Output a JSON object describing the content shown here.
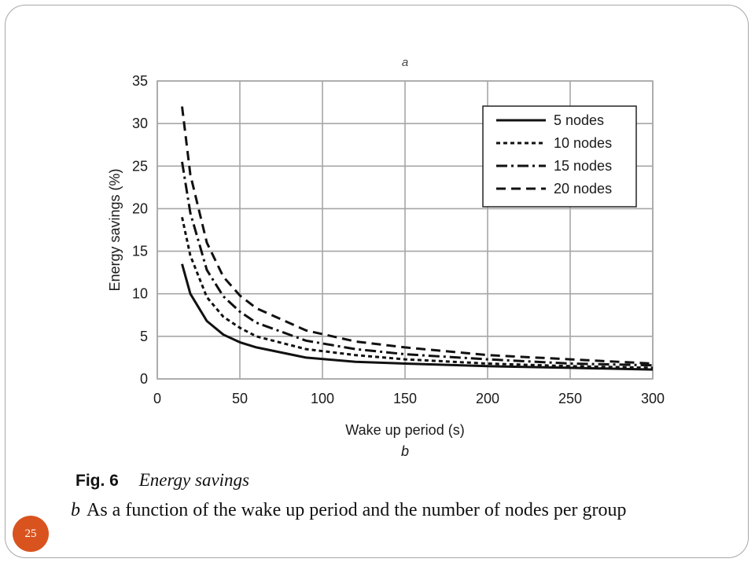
{
  "chart_data": {
    "type": "line",
    "top_label": "a",
    "panel_label": "b",
    "xlabel": "Wake up period (s)",
    "ylabel": "Energy savings (%)",
    "xlim": [
      0,
      300
    ],
    "ylim": [
      0,
      35
    ],
    "x_ticks": [
      0,
      50,
      100,
      150,
      200,
      250,
      300
    ],
    "y_ticks": [
      0,
      5,
      10,
      15,
      20,
      25,
      30,
      35
    ],
    "grid": true,
    "legend_position": "top-right",
    "series": [
      {
        "name": "5 nodes",
        "dash": "solid",
        "x": [
          15,
          20,
          30,
          40,
          50,
          60,
          90,
          120,
          150,
          200,
          250,
          300
        ],
        "y": [
          13.5,
          10,
          6.8,
          5.2,
          4.3,
          3.7,
          2.5,
          2.0,
          1.8,
          1.5,
          1.3,
          1.1
        ]
      },
      {
        "name": "10 nodes",
        "dash": "short-dash",
        "x": [
          15,
          20,
          30,
          40,
          50,
          60,
          90,
          120,
          150,
          200,
          250,
          300
        ],
        "y": [
          19,
          14.5,
          9.6,
          7.3,
          6.0,
          5.0,
          3.5,
          2.8,
          2.3,
          1.8,
          1.5,
          1.3
        ]
      },
      {
        "name": "15 nodes",
        "dash": "dash-dot",
        "x": [
          15,
          20,
          30,
          40,
          50,
          60,
          90,
          120,
          150,
          200,
          250,
          300
        ],
        "y": [
          25.5,
          19.5,
          12.8,
          9.7,
          7.9,
          6.6,
          4.5,
          3.5,
          2.9,
          2.3,
          1.8,
          1.6
        ]
      },
      {
        "name": "20 nodes",
        "dash": "long-dash",
        "x": [
          15,
          20,
          30,
          40,
          50,
          60,
          90,
          120,
          150,
          200,
          250,
          300
        ],
        "y": [
          32,
          24,
          16,
          12,
          9.8,
          8.3,
          5.7,
          4.4,
          3.7,
          2.8,
          2.3,
          1.8
        ]
      }
    ]
  },
  "caption": {
    "fig_label": "Fig. 6",
    "fig_title": "Energy savings",
    "sub_letter": "b",
    "sub_text": "As a function of the wake up period and the number of nodes per group"
  },
  "slide": {
    "page_number": "25",
    "accent_color": "#d9531e"
  }
}
